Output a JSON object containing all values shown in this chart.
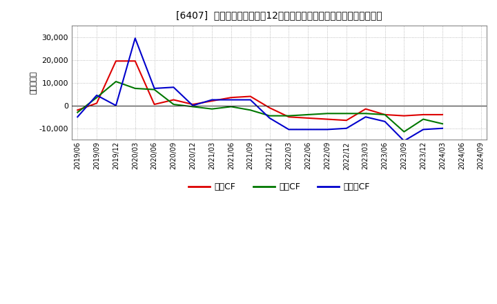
{
  "title": "[6407]  キャッシュフローの12か月移動合計の対前年同期増減額の推移",
  "ylabel": "（百万円）",
  "background_color": "#ffffff",
  "plot_background_color": "#ffffff",
  "grid_color": "#aaaaaa",
  "x_labels": [
    "2019/06",
    "2019/09",
    "2019/12",
    "2020/03",
    "2020/06",
    "2020/09",
    "2020/12",
    "2021/03",
    "2021/06",
    "2021/09",
    "2021/12",
    "2022/03",
    "2022/06",
    "2022/09",
    "2022/12",
    "2023/03",
    "2023/06",
    "2023/09",
    "2023/12",
    "2024/03",
    "2024/06",
    "2024/09"
  ],
  "eigyo_cf": [
    -2000,
    1000,
    19500,
    19500,
    500,
    2500,
    500,
    2000,
    3500,
    4000,
    -1000,
    -5000,
    -5500,
    -6000,
    -6500,
    -1500,
    -4000,
    -4500,
    -4000,
    -4000,
    null,
    null
  ],
  "toshi_cf": [
    -3000,
    3500,
    10500,
    7500,
    7000,
    500,
    -500,
    -1500,
    -500,
    -2000,
    -4500,
    -4500,
    -4000,
    -3500,
    -3500,
    -3500,
    -4000,
    -11500,
    -6000,
    -8000,
    null,
    null
  ],
  "free_cf": [
    -5000,
    4500,
    0,
    29500,
    7500,
    8000,
    0,
    2500,
    2500,
    2500,
    -5500,
    -10500,
    -10500,
    -10500,
    -10000,
    -5000,
    -7000,
    -15500,
    -10500,
    -10000,
    null,
    null
  ],
  "eigyo_color": "#dd0000",
  "toshi_color": "#007700",
  "free_color": "#0000cc",
  "ylim_min": -15000,
  "ylim_max": 35000,
  "yticks": [
    -10000,
    0,
    10000,
    20000,
    30000
  ],
  "legend_labels": [
    "営業CF",
    "投資CF",
    "フリーCF"
  ]
}
